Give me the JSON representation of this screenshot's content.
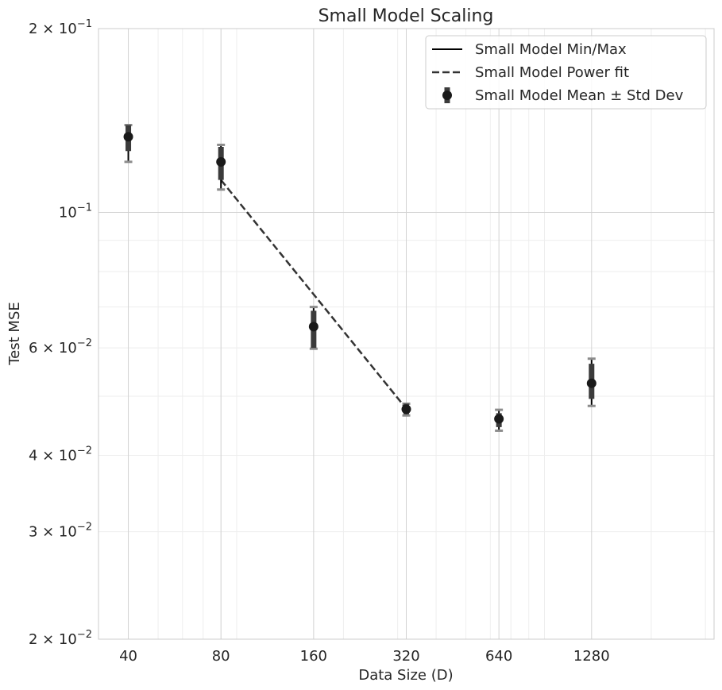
{
  "chart_data": {
    "type": "scatter",
    "title": "Small Model Scaling",
    "xlabel": "Data Size (D)",
    "ylabel": "Test MSE",
    "xscale": "log",
    "yscale": "log",
    "xlim": [
      32,
      3200
    ],
    "ylim": [
      0.02,
      0.2
    ],
    "grid": true,
    "legend_position": "top-right",
    "x_ticks": [
      {
        "value": 40,
        "label": "40"
      },
      {
        "value": 80,
        "label": "80"
      },
      {
        "value": 160,
        "label": "160"
      },
      {
        "value": 320,
        "label": "320"
      },
      {
        "value": 640,
        "label": "640"
      },
      {
        "value": 1280,
        "label": "1280"
      }
    ],
    "y_ticks": [
      {
        "value": 0.2,
        "base": "2 × 10",
        "exp": "−1"
      },
      {
        "value": 0.1,
        "base": "10",
        "exp": "−1"
      },
      {
        "value": 0.06,
        "base": "6 × 10",
        "exp": "−2"
      },
      {
        "value": 0.04,
        "base": "4 × 10",
        "exp": "−2"
      },
      {
        "value": 0.03,
        "base": "3 × 10",
        "exp": "−2"
      },
      {
        "value": 0.02,
        "base": "2 × 10",
        "exp": "−2"
      }
    ],
    "legend": [
      {
        "label": "Small Model Min/Max",
        "style": "solid"
      },
      {
        "label": "Small Model Power fit",
        "style": "dashed"
      },
      {
        "label": "Small Model Mean ± Std Dev",
        "style": "marker"
      }
    ],
    "series": [
      {
        "name": "Small Model Mean ± Std Dev",
        "x": [
          40,
          80,
          160,
          320,
          640,
          1280
        ],
        "mean": [
          0.133,
          0.121,
          0.065,
          0.0476,
          0.0459,
          0.0525
        ],
        "std_low": [
          0.126,
          0.113,
          0.06,
          0.0467,
          0.0445,
          0.0495
        ],
        "std_high": [
          0.139,
          0.128,
          0.069,
          0.0486,
          0.0469,
          0.0565
        ],
        "min": [
          0.121,
          0.109,
          0.0598,
          0.0465,
          0.0439,
          0.0482
        ],
        "max": [
          0.139,
          0.129,
          0.07,
          0.0486,
          0.0475,
          0.0576
        ]
      },
      {
        "name": "Small Model Power fit",
        "x": [
          80,
          320
        ],
        "y": [
          0.113,
          0.0477
        ]
      }
    ]
  },
  "colors": {
    "marker": "#1a1a1a",
    "std_bar": "#3b3b3b",
    "cap": "#8c8c8c",
    "fit": "#333333",
    "grid_major": "#d2d2d2",
    "grid_minor": "#eeeeee",
    "spine": "#cccccc"
  }
}
